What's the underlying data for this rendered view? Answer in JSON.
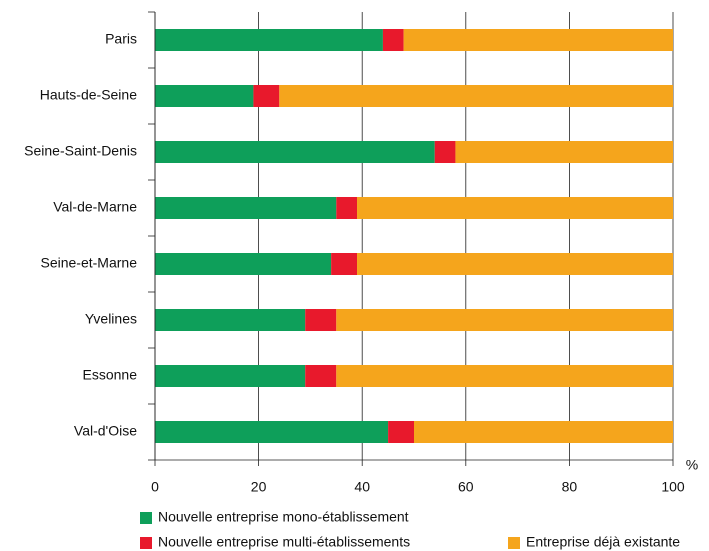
{
  "chart_data": {
    "type": "stacked_bar_horizontal",
    "x_unit": "%",
    "categories": [
      "Paris",
      "Hauts-de-Seine",
      "Seine-Saint-Denis",
      "Val-de-Marne",
      "Seine-et-Marne",
      "Yvelines",
      "Essonne",
      "Val-d'Oise"
    ],
    "series": [
      {
        "name": "Nouvelle entreprise mono-établissement",
        "color": "#0e9f5a",
        "values": [
          44,
          19,
          54,
          35,
          34,
          29,
          29,
          45
        ]
      },
      {
        "name": "Nouvelle entreprise multi-établissements",
        "color": "#e8192c",
        "values": [
          4,
          5,
          4,
          4,
          5,
          6,
          6,
          5
        ]
      },
      {
        "name": "Entreprise déjà existante",
        "color": "#f5a51c",
        "values": [
          52,
          76,
          42,
          61,
          61,
          65,
          65,
          50
        ]
      }
    ],
    "xlim": [
      0,
      100
    ],
    "xticks": [
      0,
      20,
      40,
      60,
      80,
      100
    ],
    "grid": true
  }
}
